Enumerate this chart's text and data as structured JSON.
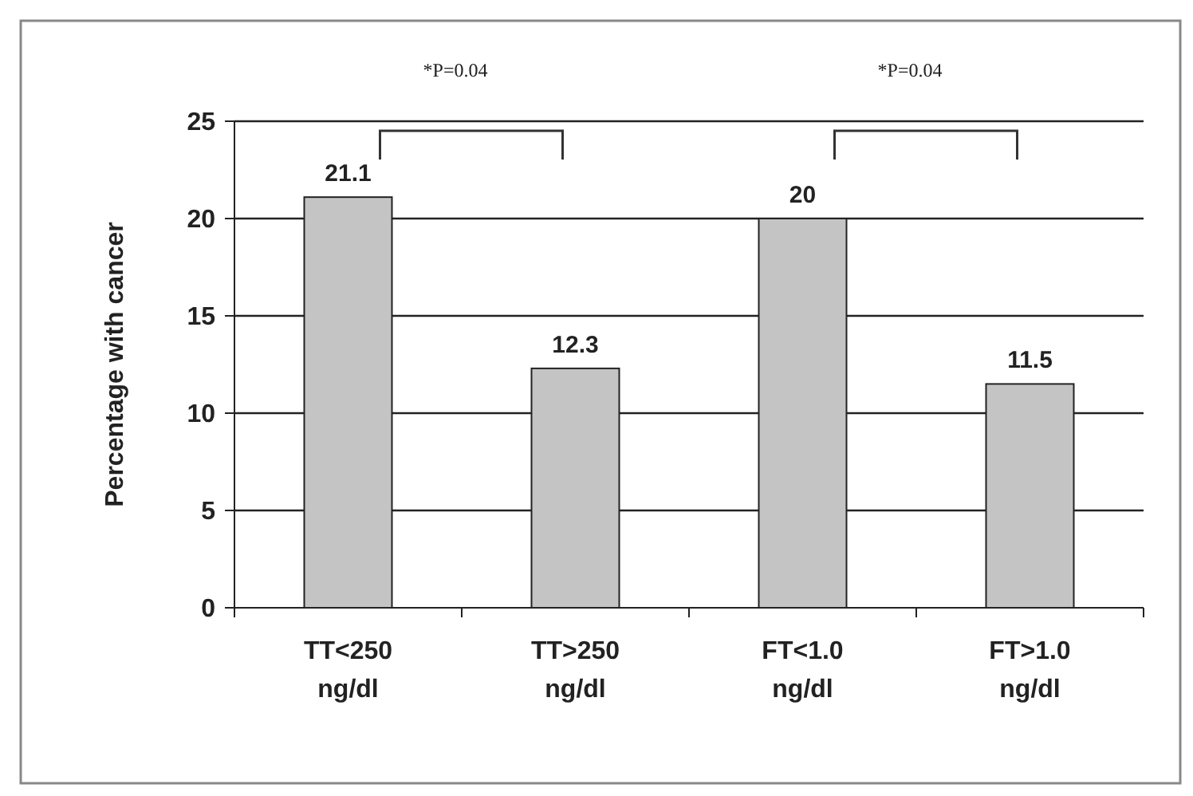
{
  "chart_data": {
    "type": "bar",
    "ylabel": "Percentage with cancer",
    "categories": [
      "TT<250 ng/dl",
      "TT>250 ng/dl",
      "FT<1.0 ng/dl",
      "FT>1.0 ng/dl"
    ],
    "values": [
      21.1,
      12.3,
      20,
      11.5
    ],
    "color": "#c4c4c4",
    "ylim": [
      0,
      25
    ],
    "yticks": [
      0,
      5,
      10,
      15,
      20,
      25
    ],
    "grid": "y",
    "data_labels": true,
    "annotations": [
      "*P=0.04",
      "*P=0.04"
    ]
  }
}
